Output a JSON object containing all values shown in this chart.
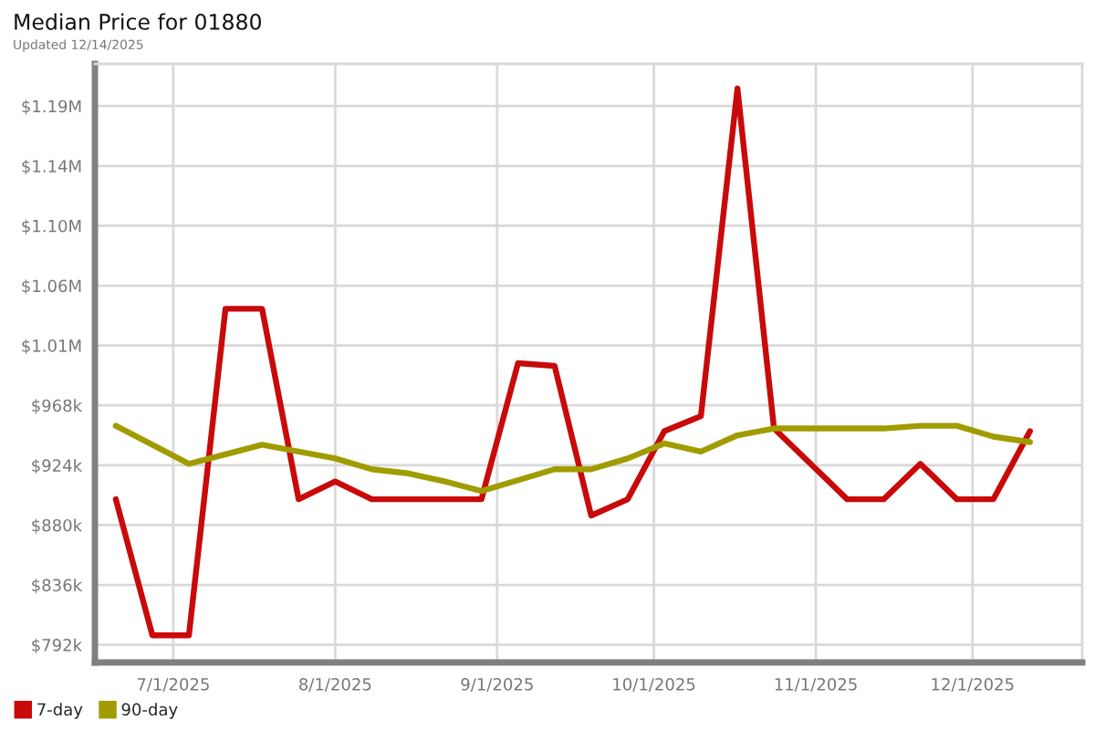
{
  "chart_data": {
    "type": "line",
    "title": "Median Price for 01880",
    "subtitle": "Updated 12/14/2025",
    "x": [
      "2025-06-20",
      "2025-06-27",
      "2025-07-04",
      "2025-07-11",
      "2025-07-18",
      "2025-07-25",
      "2025-08-01",
      "2025-08-08",
      "2025-08-15",
      "2025-08-22",
      "2025-08-29",
      "2025-09-05",
      "2025-09-12",
      "2025-09-19",
      "2025-09-26",
      "2025-10-03",
      "2025-10-10",
      "2025-10-17",
      "2025-10-24",
      "2025-10-31",
      "2025-11-07",
      "2025-11-14",
      "2025-11-21",
      "2025-11-28",
      "2025-12-05",
      "2025-12-12"
    ],
    "series": [
      {
        "name": "7-day",
        "color": "#c80a0a",
        "values": [
          899000,
          799000,
          799000,
          1039000,
          1039000,
          899000,
          912000,
          899000,
          899000,
          899000,
          899000,
          999000,
          997000,
          887000,
          899000,
          949000,
          960000,
          1201000,
          951000,
          925000,
          899000,
          899000,
          925000,
          899000,
          899000,
          949000
        ]
      },
      {
        "name": "90-day",
        "color": "#a09c00",
        "values": [
          953000,
          939000,
          925000,
          932000,
          939000,
          934000,
          929000,
          921000,
          918000,
          912000,
          905000,
          913000,
          921000,
          921000,
          929000,
          940000,
          934000,
          946000,
          951000,
          951000,
          951000,
          951000,
          953000,
          953000,
          945000,
          941000
        ]
      }
    ],
    "xlim": [
      "2025-06-16",
      "2025-12-22"
    ],
    "xticks": [
      {
        "value": "2025-07-01",
        "label": "7/1/2025"
      },
      {
        "value": "2025-08-01",
        "label": "8/1/2025"
      },
      {
        "value": "2025-09-01",
        "label": "9/1/2025"
      },
      {
        "value": "2025-10-01",
        "label": "10/1/2025"
      },
      {
        "value": "2025-11-01",
        "label": "11/1/2025"
      },
      {
        "value": "2025-12-01",
        "label": "12/1/2025"
      }
    ],
    "ylim": [
      779000,
      1219000
    ],
    "yticks": [
      {
        "value": 792000,
        "label": "$792k"
      },
      {
        "value": 836000,
        "label": "$836k"
      },
      {
        "value": 880000,
        "label": "$880k"
      },
      {
        "value": 924000,
        "label": "$924k"
      },
      {
        "value": 968000,
        "label": "$968k"
      },
      {
        "value": 1012000,
        "label": "$1.01M"
      },
      {
        "value": 1056000,
        "label": "$1.06M"
      },
      {
        "value": 1100000,
        "label": "$1.10M"
      },
      {
        "value": 1144000,
        "label": "$1.14M"
      },
      {
        "value": 1188000,
        "label": "$1.19M"
      }
    ],
    "grid": true,
    "legend": "bottom"
  }
}
